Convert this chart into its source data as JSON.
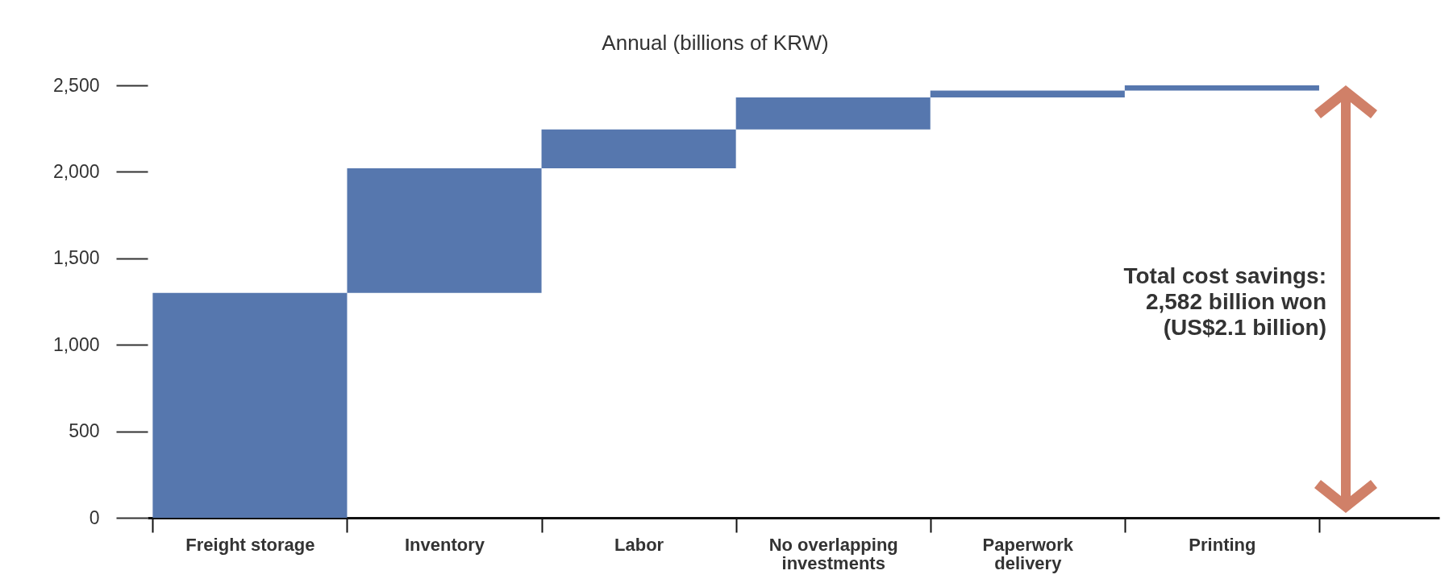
{
  "chart_data": {
    "type": "bar",
    "title": "Annual (billions of KRW)",
    "categories": [
      "Freight storage",
      "Inventory",
      "Labor",
      "No overlapping investments",
      "Paperwork delivery",
      "Printing"
    ],
    "base": [
      0,
      1300,
      2020,
      2245,
      2430,
      2470
    ],
    "values": [
      1300,
      720,
      225,
      185,
      40,
      30
    ],
    "color": "#5677ae",
    "ylim": [
      0,
      2500
    ],
    "yticks": [
      0,
      500,
      {
        "value": 1000,
        "label": "1,000"
      },
      {
        "value": 1500,
        "label": "1,500"
      },
      {
        "value": 2000,
        "label": "2,000"
      },
      {
        "value": 2500,
        "label": "2,500"
      }
    ],
    "annotations": [
      "Total cost savings:\n2,582 billion won\n(US$2.1 billion)"
    ]
  }
}
